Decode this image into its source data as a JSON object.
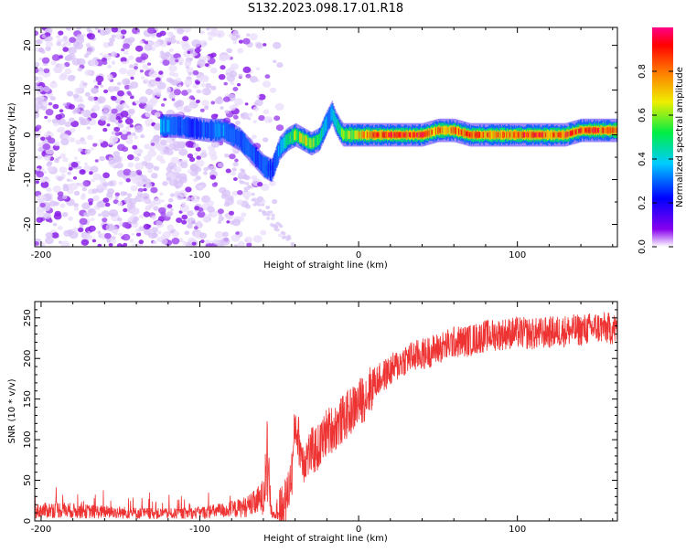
{
  "title": "S132.2023.098.17.01.R18",
  "chart_data": [
    {
      "type": "heatmap",
      "xlabel": "Height of straight line (km)",
      "ylabel": "Frequency (Hz)",
      "xlim": [
        -204,
        163
      ],
      "ylim": [
        -25,
        24
      ],
      "xticks": [
        -200,
        -100,
        0,
        100
      ],
      "yticks": [
        20,
        10,
        0,
        -10,
        -20
      ],
      "colorbar": {
        "label": "Normalized spectral amplitude",
        "ticks": [
          0.0,
          0.2,
          0.4,
          0.6,
          0.8
        ],
        "range": [
          0,
          1
        ]
      },
      "ridge": {
        "x": [
          -125,
          -115,
          -105,
          -95,
          -85,
          -80,
          -75,
          -70,
          -65,
          -60,
          -55,
          -50,
          -45,
          -40,
          -35,
          -30,
          -25,
          -20,
          -17,
          -15,
          -12,
          -10,
          -5,
          0,
          10,
          20,
          30,
          40,
          50,
          60,
          70,
          80,
          90,
          100,
          110,
          120,
          130,
          140,
          150,
          163
        ],
        "freq": [
          2,
          2,
          1.5,
          1,
          1,
          0,
          -1,
          -3,
          -5,
          -7,
          -8,
          -3,
          -1,
          0,
          -1,
          -2,
          -1,
          3,
          5,
          3,
          1,
          0,
          0,
          0,
          0,
          0,
          0,
          0,
          1,
          1,
          0,
          0,
          0,
          0,
          0,
          0,
          0,
          1,
          1,
          1
        ],
        "amp": [
          0.35,
          0.3,
          0.25,
          0.3,
          0.35,
          0.3,
          0.3,
          0.3,
          0.25,
          0.3,
          0.25,
          0.35,
          0.5,
          0.6,
          0.65,
          0.6,
          0.5,
          0.35,
          0.4,
          0.45,
          0.5,
          0.6,
          0.6,
          0.7,
          0.85,
          0.9,
          0.85,
          0.9,
          0.75,
          0.8,
          0.85,
          0.8,
          0.8,
          0.85,
          0.9,
          0.8,
          0.85,
          0.85,
          0.9,
          0.75
        ]
      }
    },
    {
      "type": "line",
      "xlabel": "Height of straight line (km)",
      "ylabel": "SNR (10 * v/v)",
      "xlim": [
        -204,
        163
      ],
      "ylim": [
        0,
        270
      ],
      "xticks": [
        -200,
        -100,
        0,
        100
      ],
      "yticks": [
        0,
        50,
        100,
        150,
        200,
        250
      ],
      "color": "#ee3333",
      "series": [
        {
          "x": [
            -204,
            -190,
            -175,
            -160,
            -145,
            -130,
            -115,
            -100,
            -90,
            -80,
            -75,
            -70,
            -65,
            -60,
            -58,
            -55,
            -52,
            -50,
            -45,
            -42,
            -40,
            -35,
            -30,
            -25,
            -20,
            -15,
            -10,
            -5,
            0,
            5,
            10,
            20,
            30,
            40,
            50,
            60,
            70,
            80,
            90,
            100,
            110,
            120,
            130,
            140,
            150,
            163
          ],
          "y": [
            12,
            14,
            12,
            11,
            10,
            9,
            9,
            10,
            12,
            14,
            16,
            18,
            22,
            30,
            85,
            10,
            6,
            8,
            30,
            60,
            120,
            75,
            85,
            90,
            110,
            115,
            125,
            135,
            145,
            155,
            170,
            185,
            200,
            205,
            212,
            220,
            222,
            228,
            230,
            232,
            230,
            232,
            234,
            235,
            238,
            236
          ]
        }
      ]
    }
  ]
}
